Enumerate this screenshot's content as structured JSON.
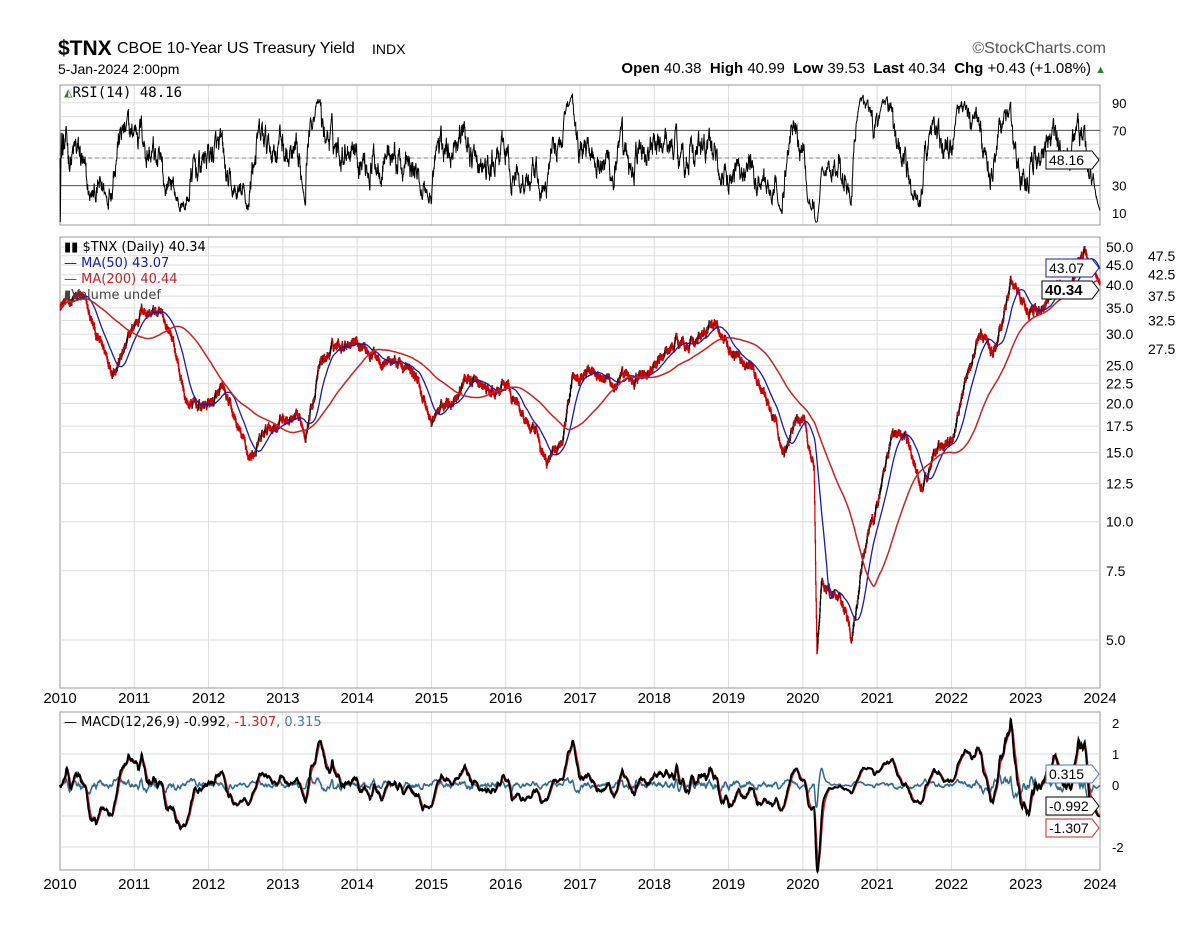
{
  "header": {
    "symbol": "$TNX",
    "name": "CBOE 10-Year US Treasury Yield",
    "exchange": "INDX",
    "brand": "©StockCharts.com",
    "datetime": "5-Jan-2024 2:00pm",
    "open_label": "Open",
    "open": "40.38",
    "high_label": "High",
    "high": "40.99",
    "low_label": "Low",
    "low": "39.53",
    "last_label": "Last",
    "last": "40.34",
    "chg_label": "Chg",
    "chg": "+0.43 (+1.08%)",
    "chg_direction": "up"
  },
  "colors": {
    "price": "#000000",
    "down": "#cc0000",
    "ma50": "#1a1aa8",
    "ma200": "#cc2222",
    "macd": "#000000",
    "signal": "#cc2222",
    "histogram": "#2f6a8a",
    "grid": "#dddddd"
  },
  "chart_data": [
    {
      "type": "line",
      "panel": "RSI",
      "legend": "RSI(14) 48.16",
      "last_value_label": "48.16",
      "y_ticks": [
        90,
        70,
        30,
        10
      ],
      "ylim": [
        0,
        100
      ],
      "reference_lines": [
        70,
        30
      ]
    },
    {
      "type": "line",
      "panel": "price",
      "scale": "log",
      "legend": [
        "$TNX (Daily) 40.34",
        "MA(50) 43.07",
        "MA(200) 40.44",
        "Volume undef"
      ],
      "last_labels": {
        "price": "40.34",
        "ma50": "43.07"
      },
      "y_ticks": [
        "50.0",
        "47.5",
        "45.0",
        "42.5",
        "40.0",
        "37.5",
        "35.0",
        "32.5",
        "30.0",
        "27.5",
        "25.0",
        "22.5",
        "20.0",
        "17.5",
        "15.0",
        "12.5",
        "10.0",
        "7.5",
        "5.0"
      ],
      "x_ticks": [
        "2010",
        "2011",
        "2012",
        "2013",
        "2014",
        "2015",
        "2016",
        "2017",
        "2018",
        "2019",
        "2020",
        "2021",
        "2022",
        "2023",
        "2024"
      ],
      "xlim": [
        2010,
        2024
      ],
      "series_points": [
        [
          2010.0,
          36
        ],
        [
          2010.3,
          37
        ],
        [
          2010.5,
          29
        ],
        [
          2010.7,
          25
        ],
        [
          2010.9,
          28
        ],
        [
          2011.1,
          35
        ],
        [
          2011.3,
          34
        ],
        [
          2011.5,
          30
        ],
        [
          2011.7,
          20
        ],
        [
          2011.9,
          19.5
        ],
        [
          2012.2,
          21
        ],
        [
          2012.4,
          17
        ],
        [
          2012.55,
          14.5
        ],
        [
          2012.8,
          17
        ],
        [
          2013.0,
          18.5
        ],
        [
          2013.3,
          17
        ],
        [
          2013.5,
          25
        ],
        [
          2013.7,
          28
        ],
        [
          2013.95,
          30
        ],
        [
          2014.2,
          27
        ],
        [
          2014.5,
          26
        ],
        [
          2014.8,
          23
        ],
        [
          2015.0,
          18
        ],
        [
          2015.2,
          20
        ],
        [
          2015.5,
          23.5
        ],
        [
          2015.8,
          21
        ],
        [
          2016.0,
          22
        ],
        [
          2016.3,
          18
        ],
        [
          2016.55,
          14
        ],
        [
          2016.75,
          16
        ],
        [
          2016.9,
          24
        ],
        [
          2017.2,
          25
        ],
        [
          2017.5,
          22
        ],
        [
          2017.75,
          23
        ],
        [
          2018.0,
          24.5
        ],
        [
          2018.3,
          29
        ],
        [
          2018.6,
          29
        ],
        [
          2018.85,
          32
        ],
        [
          2019.0,
          27
        ],
        [
          2019.3,
          25
        ],
        [
          2019.6,
          18
        ],
        [
          2019.75,
          15
        ],
        [
          2019.9,
          18.5
        ],
        [
          2020.0,
          19
        ],
        [
          2020.15,
          14
        ],
        [
          2020.19,
          4.5
        ],
        [
          2020.25,
          7
        ],
        [
          2020.5,
          6.5
        ],
        [
          2020.65,
          5.3
        ],
        [
          2020.8,
          8
        ],
        [
          2021.0,
          11
        ],
        [
          2021.2,
          17
        ],
        [
          2021.4,
          16
        ],
        [
          2021.6,
          12
        ],
        [
          2021.8,
          15.5
        ],
        [
          2022.0,
          16
        ],
        [
          2022.2,
          24
        ],
        [
          2022.4,
          30
        ],
        [
          2022.6,
          27
        ],
        [
          2022.8,
          41
        ],
        [
          2023.0,
          36
        ],
        [
          2023.2,
          35
        ],
        [
          2023.4,
          38
        ],
        [
          2023.6,
          41
        ],
        [
          2023.8,
          48
        ],
        [
          2023.9,
          44
        ],
        [
          2024.0,
          40.34
        ]
      ]
    },
    {
      "type": "line",
      "panel": "MACD",
      "legend": {
        "label": "MACD(12,26,9)",
        "macd": "-0.992",
        "signal": "-1.307",
        "histogram": "0.315"
      },
      "last_labels": {
        "histogram": "0.315",
        "macd": "-0.992",
        "signal": "-1.307"
      },
      "y_ticks": [
        "2",
        "1",
        "0",
        "-2"
      ],
      "x_ticks": [
        "2010",
        "2011",
        "2012",
        "2013",
        "2014",
        "2015",
        "2016",
        "2017",
        "2018",
        "2019",
        "2020",
        "2021",
        "2022",
        "2023",
        "2024"
      ]
    }
  ]
}
